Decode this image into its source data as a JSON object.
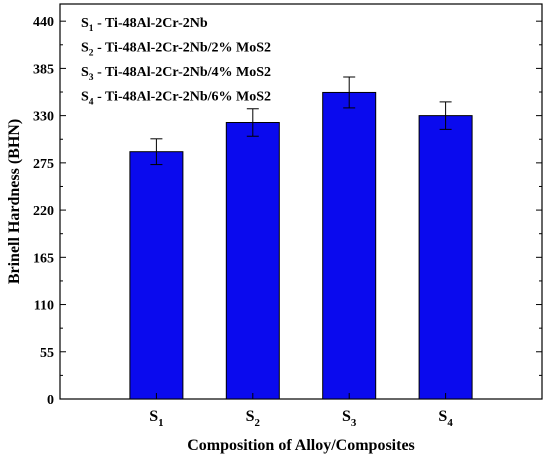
{
  "chart_data": {
    "type": "bar",
    "categories": [
      {
        "base": "S",
        "sub": "1"
      },
      {
        "base": "S",
        "sub": "2"
      },
      {
        "base": "S",
        "sub": "3"
      },
      {
        "base": "S",
        "sub": "4"
      }
    ],
    "values": [
      288,
      322,
      357,
      330
    ],
    "errors": [
      15,
      16,
      18,
      16
    ],
    "xlabel": "Composition of Alloy/Composites",
    "ylabel": "Brinell Hardness (BHN)",
    "ylim": [
      0,
      460
    ],
    "yticks": [
      0,
      55,
      110,
      165,
      220,
      275,
      330,
      385,
      440
    ],
    "bar_color": "#0a0aee",
    "legend_position": "top-left",
    "legend": [
      {
        "base": "S",
        "sub": "1",
        "text": " - Ti-48Al-2Cr-2Nb"
      },
      {
        "base": "S",
        "sub": "2",
        "text": " - Ti-48Al-2Cr-2Nb/2% MoS2"
      },
      {
        "base": "S",
        "sub": "3",
        "text": " - Ti-48Al-2Cr-2Nb/4% MoS2"
      },
      {
        "base": "S",
        "sub": "4",
        "text": " - Ti-48Al-2Cr-2Nb/6% MoS2"
      }
    ]
  }
}
